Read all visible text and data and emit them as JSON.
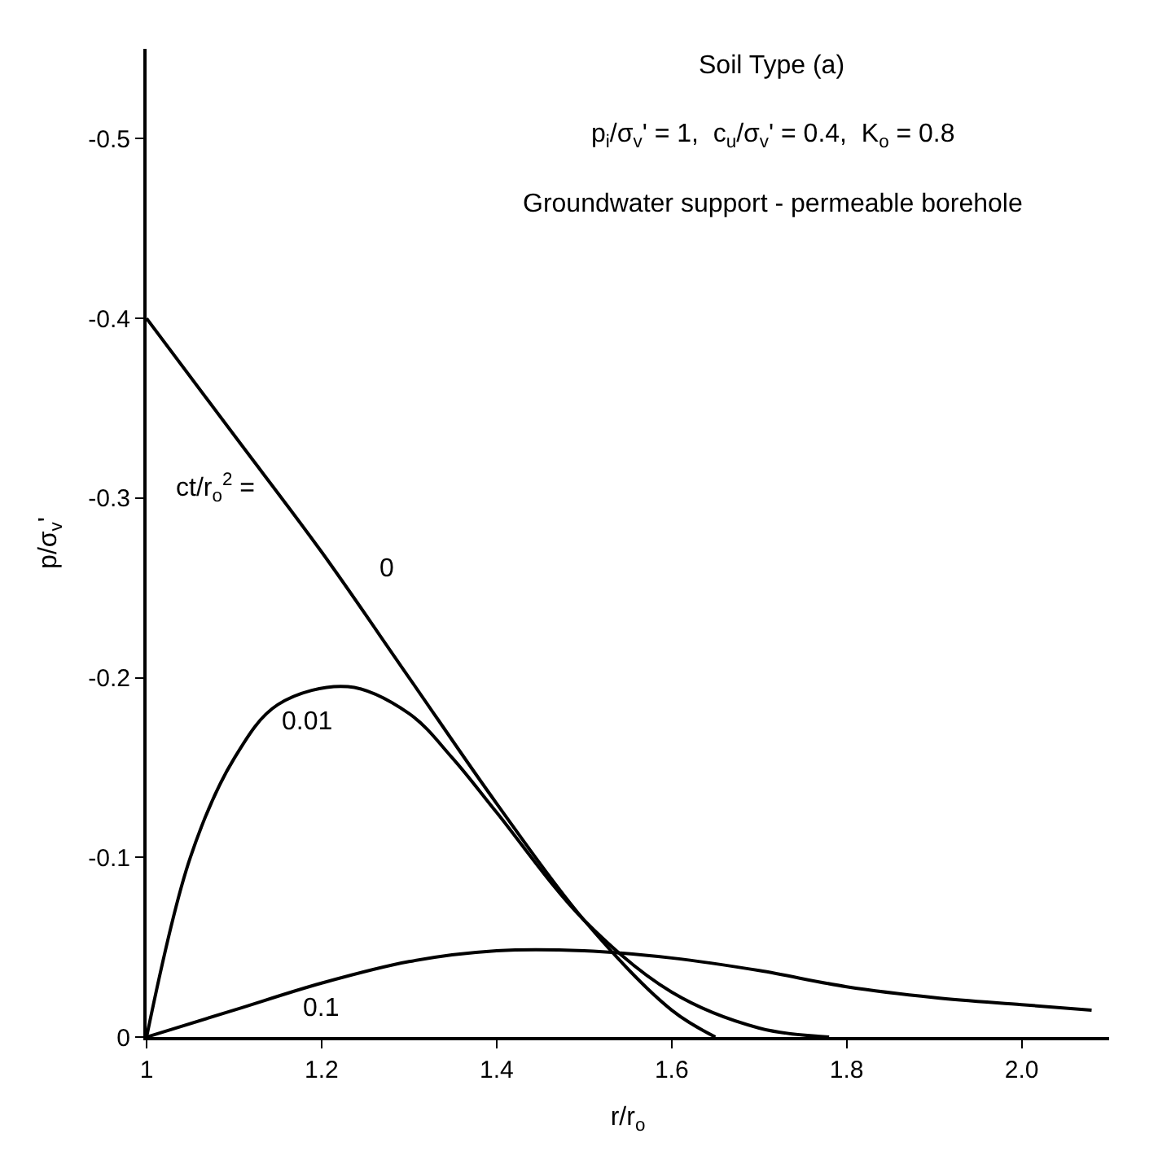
{
  "chart_data": {
    "type": "line",
    "title": "Soil Type (a)",
    "subtitle": "p$_{i}$/σ$_{v}$' = 1,  c$_{u}$/σ$_{v}$' = 0.4,  K$_{o}$ = 0.8",
    "xlabel": "r/r$_{o}$",
    "ylabel": "p/σ$_{v}$'",
    "xlim": [
      1,
      2.1
    ],
    "ylim": [
      0,
      -0.55
    ],
    "xticks": [
      1,
      1.2,
      1.4,
      1.6,
      1.8,
      {
        "value": 2,
        "label": "2.0"
      }
    ],
    "yticks": [
      0,
      -0.1,
      -0.2,
      -0.3,
      -0.4,
      -0.5
    ],
    "legend": false,
    "marker": "none",
    "line_style": "solid",
    "series": [
      {
        "name": "0",
        "color": "#000000",
        "x": [
          1,
          1.1,
          1.2,
          1.3,
          1.4,
          1.5,
          1.6,
          1.65
        ],
        "values": [
          -0.4,
          -0.335,
          -0.27,
          -0.2,
          -0.13,
          -0.065,
          -0.015,
          0
        ]
      },
      {
        "name": "0.01",
        "color": "#000000",
        "x": [
          1,
          1.05,
          1.1,
          1.15,
          1.23,
          1.3,
          1.35,
          1.4,
          1.5,
          1.6,
          1.7,
          1.78
        ],
        "values": [
          0,
          -0.1,
          -0.155,
          -0.185,
          -0.195,
          -0.18,
          -0.155,
          -0.125,
          -0.065,
          -0.025,
          -0.005,
          0
        ]
      },
      {
        "name": "0.1",
        "color": "#000000",
        "x": [
          1,
          1.1,
          1.2,
          1.3,
          1.4,
          1.5,
          1.6,
          1.7,
          1.8,
          1.9,
          2.0,
          2.08
        ],
        "values": [
          0,
          -0.015,
          -0.03,
          -0.042,
          -0.048,
          -0.048,
          -0.044,
          -0.037,
          -0.028,
          -0.022,
          -0.018,
          -0.015
        ]
      }
    ],
    "annotations": [
      "Groundwater support - permeable borehole",
      "ct/r$_{o}$$^{2}$ ="
    ]
  }
}
